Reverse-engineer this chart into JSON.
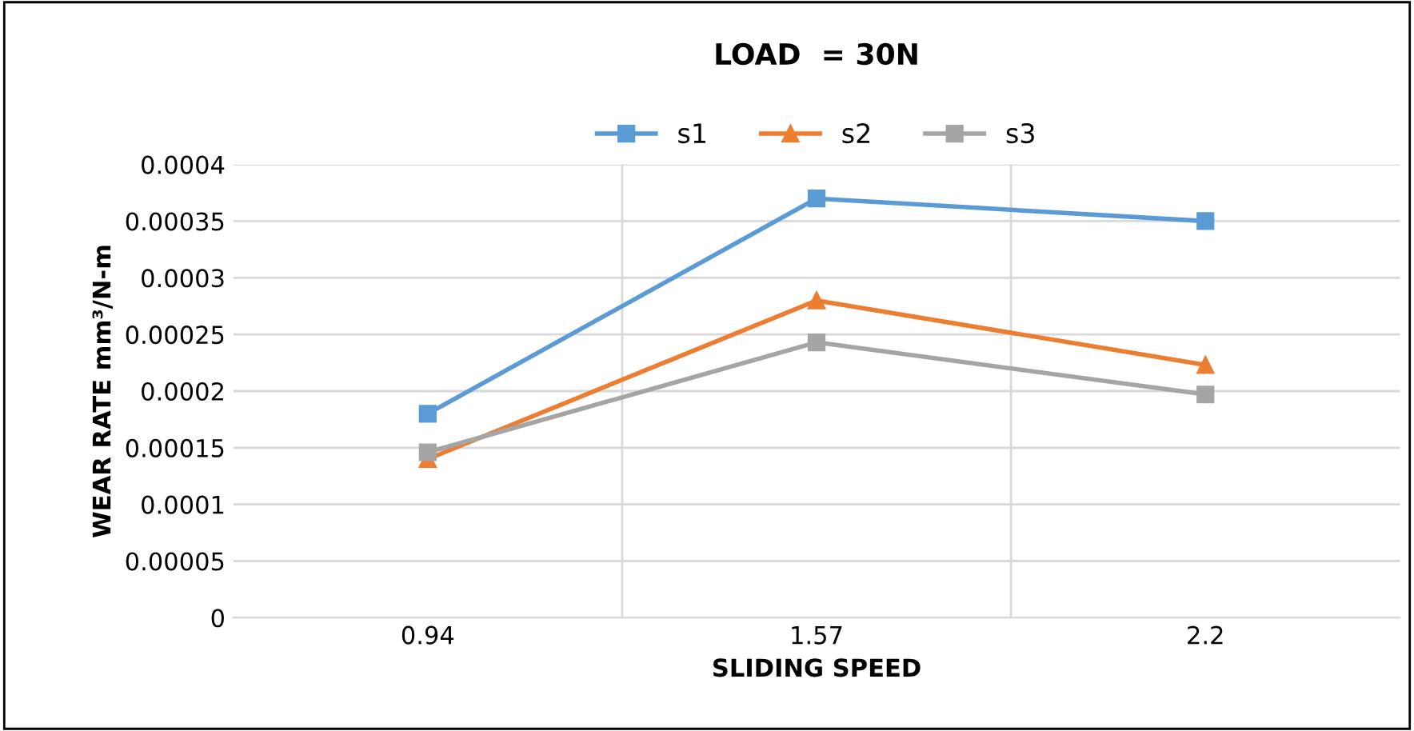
{
  "chart_data": {
    "type": "line",
    "title": "LOAD  = 30N",
    "xlabel": "SLIDING SPEED",
    "ylabel": "WEAR RATE mm³/N-m",
    "categories": [
      "0.94",
      "1.57",
      "2.2"
    ],
    "series": [
      {
        "name": "s1",
        "color": "#5b9bd5",
        "values": [
          0.00018,
          0.00037,
          0.00035
        ],
        "marker": "square"
      },
      {
        "name": "s2",
        "color": "#ed7d31",
        "values": [
          0.00014,
          0.00028,
          0.000223
        ],
        "marker": "triangle"
      },
      {
        "name": "s3",
        "color": "#a5a5a5",
        "values": [
          0.000146,
          0.000243,
          0.000197
        ],
        "marker": "square"
      }
    ],
    "ylim": [
      0,
      0.0004
    ],
    "yticks": [
      0,
      {
        "value": 5e-05,
        "label": "0.00005"
      },
      {
        "value": 0.0001,
        "label": "0.0001"
      },
      {
        "value": 0.00015,
        "label": "0.00015"
      },
      {
        "value": 0.0002,
        "label": "0.0002"
      },
      {
        "value": 0.00025,
        "label": "0.00025"
      },
      {
        "value": 0.0003,
        "label": "0.0003"
      },
      {
        "value": 0.00035,
        "label": "0.00035"
      },
      {
        "value": 0.0004,
        "label": "0.0004"
      }
    ],
    "grid": true,
    "legend": "top",
    "line_style": "solid"
  }
}
